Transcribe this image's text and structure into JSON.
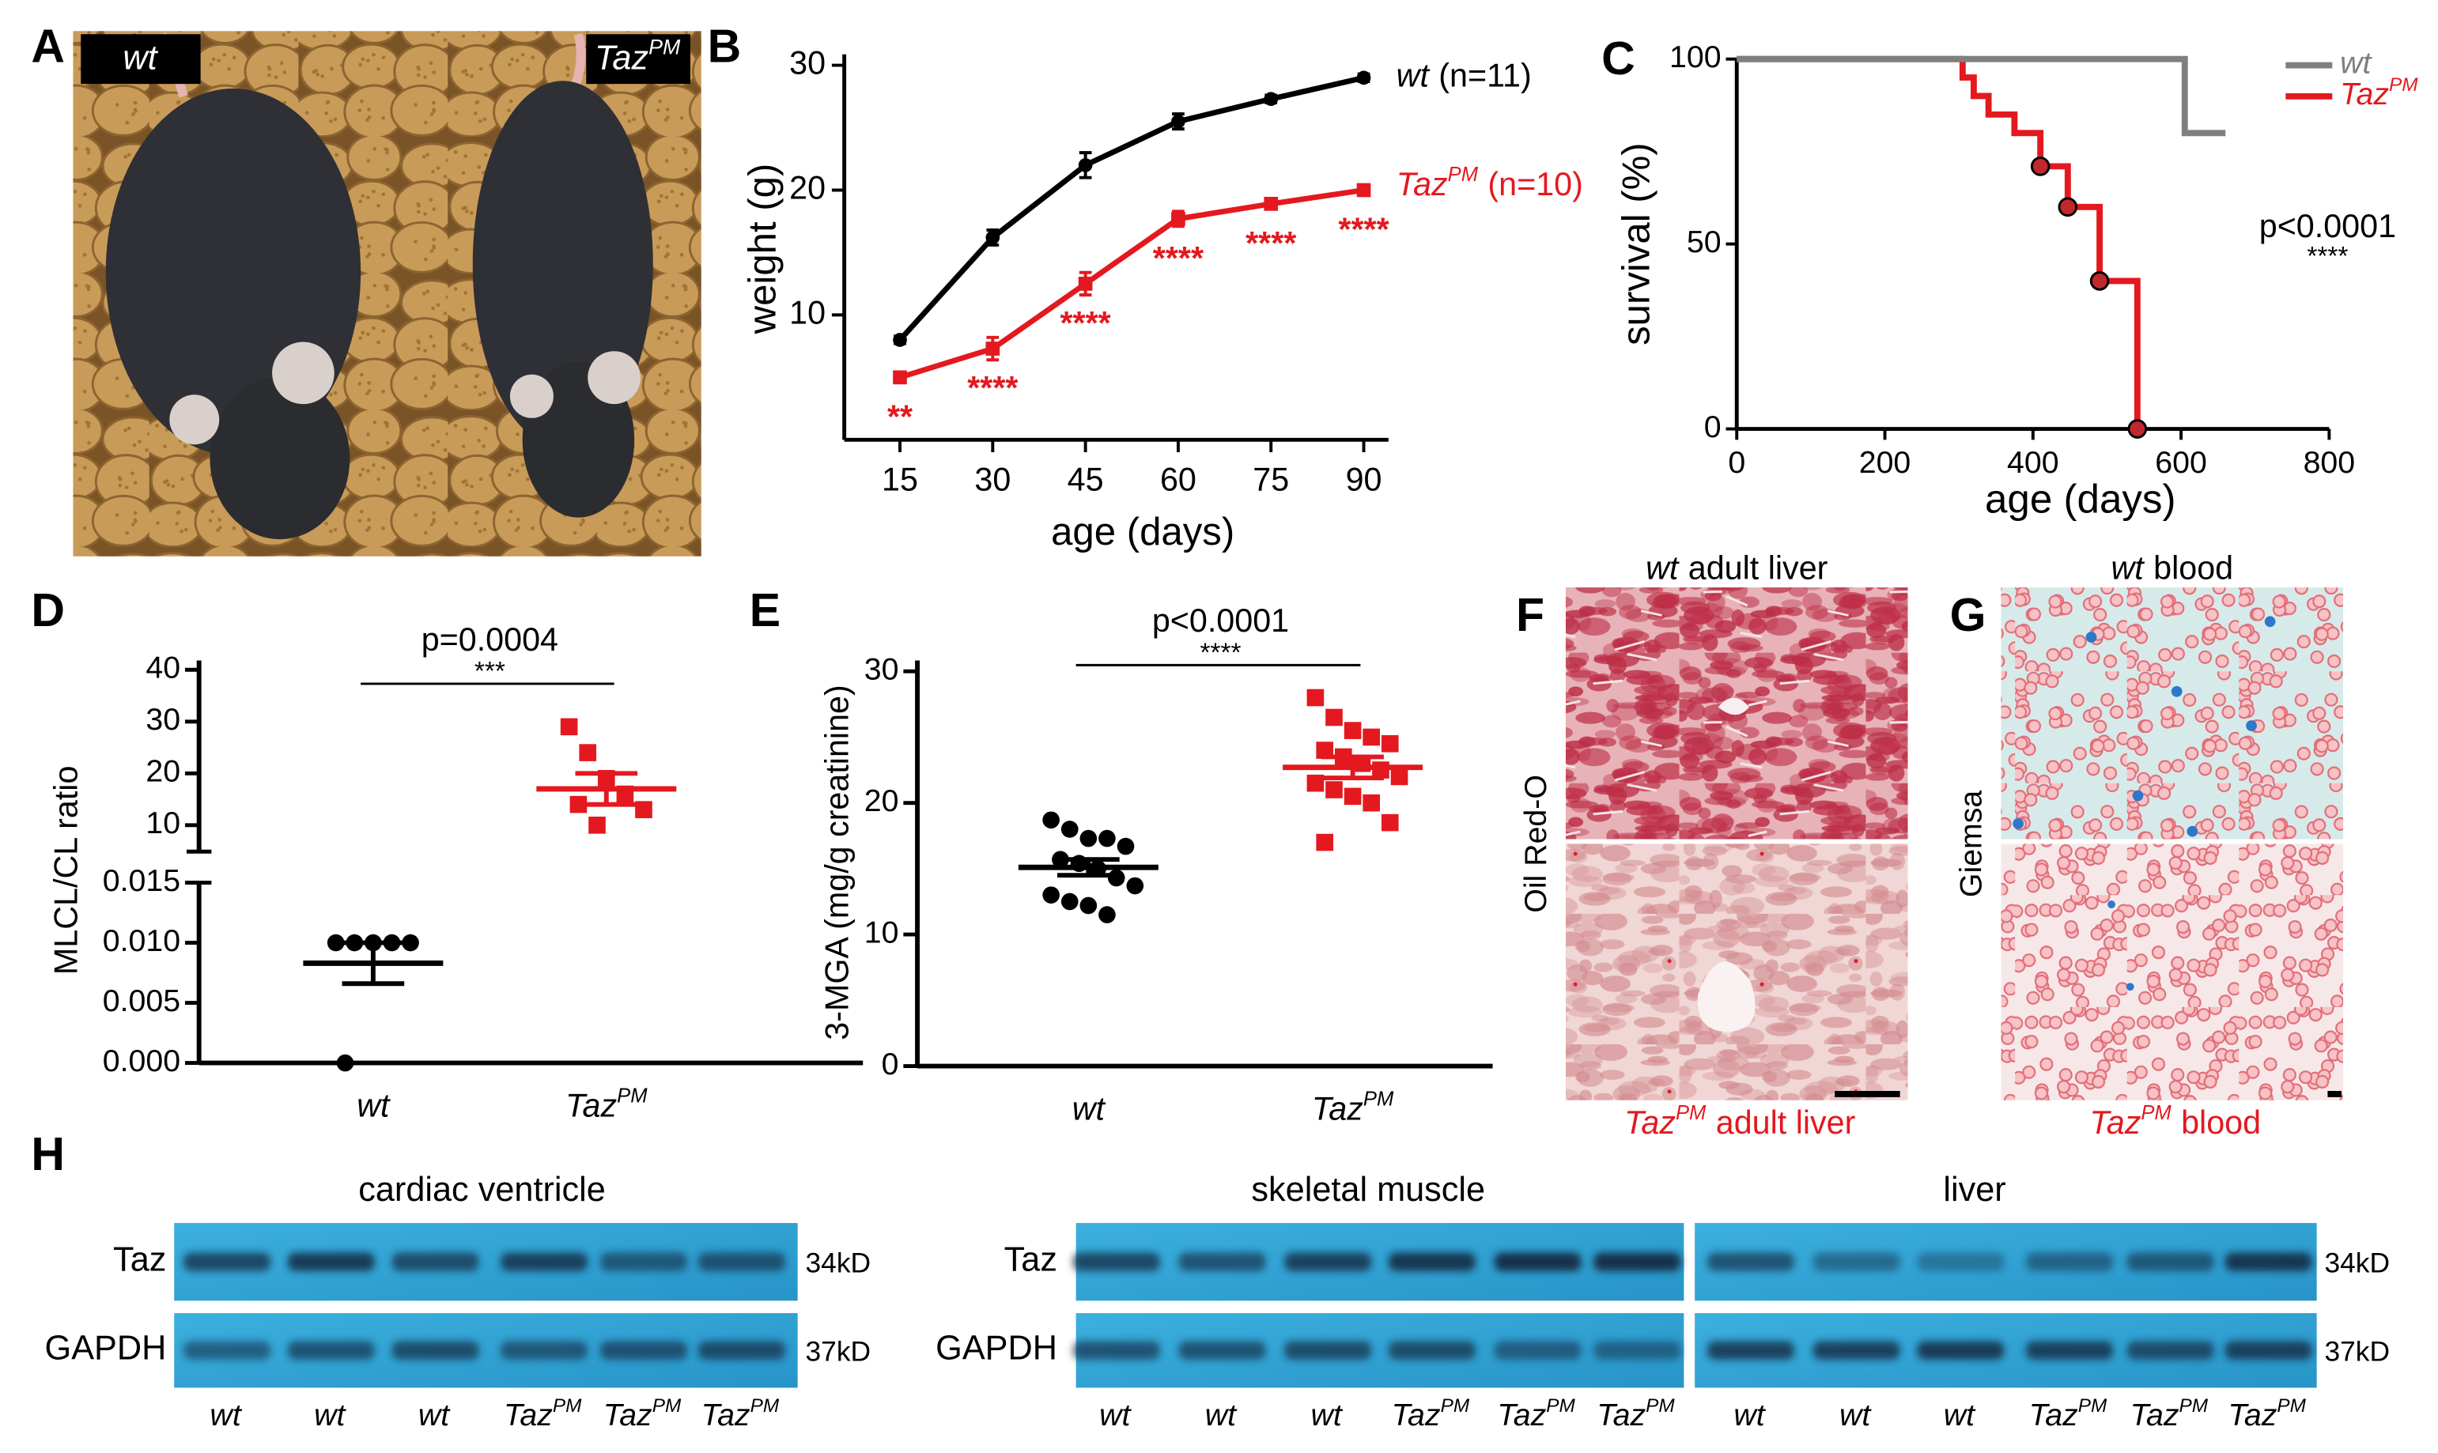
{
  "panel_labels": [
    "A",
    "B",
    "C",
    "D",
    "E",
    "F",
    "G",
    "H"
  ],
  "photo_labels": [
    {
      "name": "wt"
    },
    {
      "name": "Taz",
      "name_sup": "PM"
    }
  ],
  "chart_data": [
    {
      "type": "line",
      "xlabel": "age (days)",
      "ylabel": "weight (g)",
      "x": [
        15,
        30,
        45,
        60,
        75,
        90
      ],
      "xlim": [
        6,
        94
      ],
      "xticks": [
        15,
        30,
        45,
        60,
        75,
        90
      ],
      "ylim": [
        0,
        30
      ],
      "yticks": [
        10,
        20,
        30
      ],
      "series": [
        {
          "name": "wt",
          "n_label": "(n=11)",
          "color": "#000000",
          "marker": "circle",
          "values": [
            8,
            16.2,
            22,
            25.5,
            27.3,
            29
          ],
          "errors": [
            0.3,
            0.6,
            1,
            0.6,
            0.3,
            0.3
          ]
        },
        {
          "name": "Taz",
          "name_sup": "PM",
          "n_label": "(n=10)",
          "color": "#e3191f",
          "marker": "square",
          "values": [
            5,
            7.3,
            12.5,
            17.7,
            18.9,
            20
          ],
          "errors": [
            0.3,
            0.9,
            0.9,
            0.6,
            0.3,
            0.3
          ],
          "significance": [
            "**",
            "****",
            "****",
            "****",
            "****",
            "****"
          ]
        }
      ]
    },
    {
      "type": "step",
      "xlabel": "age (days)",
      "ylabel": "survival (%)",
      "xlim": [
        0,
        800
      ],
      "xticks": [
        0,
        200,
        400,
        600,
        800
      ],
      "ylim": [
        0,
        100
      ],
      "yticks": [
        0,
        50,
        100
      ],
      "series": [
        {
          "name": "wt",
          "color": "#7f7f7f",
          "x": [
            0,
            605,
            660
          ],
          "values": [
            100,
            80,
            80
          ]
        },
        {
          "name": "Taz",
          "name_sup": "PM",
          "color": "#e3191f",
          "x": [
            0,
            305,
            320,
            340,
            375,
            410,
            447,
            490,
            541
          ],
          "values": [
            100,
            95,
            90,
            85,
            80,
            71,
            60,
            40,
            0
          ],
          "censored_x": [
            410,
            447,
            490,
            541
          ],
          "censored_values": [
            71,
            60,
            40,
            0
          ]
        }
      ],
      "annotation": {
        "p": "p<0.0001",
        "stars": "****"
      }
    },
    {
      "type": "dot",
      "ylabel": "MLCL/CL ratio",
      "ylim": [
        0,
        0.015
      ],
      "yticks": [
        {
          "value": 0,
          "label": "0.000"
        },
        {
          "value": 0.005,
          "label": "0.005"
        },
        {
          "value": 0.01,
          "label": "0.010"
        },
        {
          "value": 0.015,
          "label": "0.015"
        }
      ],
      "ylim_upper": [
        10,
        40
      ],
      "yticks_upper": [
        10,
        20,
        30,
        40
      ],
      "series": [
        {
          "name": "wt",
          "color": "#000000",
          "marker": "circle",
          "values": [
            0.01,
            0.01,
            0.01,
            0.01,
            0.01,
            0
          ],
          "mean": 0.0083,
          "sem": 0.0017
        },
        {
          "name": "Taz",
          "name_sup": "PM",
          "color": "#e3191f",
          "marker": "square",
          "values": [
            29,
            24,
            19,
            16,
            13,
            14,
            10
          ],
          "mean": 17,
          "sem": 3
        }
      ],
      "annotation": {
        "p": "p=0.0004",
        "stars": "***"
      }
    },
    {
      "type": "dot",
      "ylabel": "3-MGA (mg/g creatinine)",
      "ylim": [
        0,
        30
      ],
      "yticks": [
        0,
        10,
        20,
        30
      ],
      "series": [
        {
          "name": "wt",
          "color": "#000000",
          "marker": "circle",
          "values": [
            18.7,
            18,
            17.3,
            17.3,
            16.7,
            15.7,
            15.4,
            15,
            14.3,
            13.7,
            13,
            12.5,
            12.2,
            11.5
          ],
          "mean": 15.1,
          "sem": 0.6
        },
        {
          "name": "Taz",
          "name_sup": "PM",
          "color": "#e3191f",
          "marker": "square",
          "values": [
            28,
            26.5,
            25.5,
            25,
            24.5,
            24,
            23.5,
            23,
            22.5,
            22,
            21.5,
            21,
            20.5,
            20,
            18.5,
            17
          ],
          "mean": 22.7,
          "sem": 0.8
        }
      ],
      "annotation": {
        "p": "p<0.0001",
        "stars": "****"
      }
    }
  ],
  "histology": [
    {
      "title": {
        "name": "wt"
      },
      "title_text": "adult liver",
      "stain": "Oil Red-O",
      "bottom": {
        "name": "Taz",
        "name_sup": "PM"
      },
      "bottom_text": "adult liver"
    },
    {
      "title": {
        "name": "wt"
      },
      "title_text": "blood",
      "stain": "Giemsa",
      "bottom": {
        "name": "Taz",
        "name_sup": "PM"
      },
      "bottom_text": "blood"
    }
  ],
  "western": {
    "tissues": [
      "cardiac ventricle",
      "skeletal muscle",
      "liver"
    ],
    "rows": [
      "Taz",
      "GAPDH"
    ],
    "sizes": [
      "34kD",
      "37kD"
    ],
    "lanes": [
      {
        "name": "wt"
      },
      {
        "name": "wt"
      },
      {
        "name": "wt"
      },
      {
        "name": "Taz",
        "name_sup": "PM"
      },
      {
        "name": "Taz",
        "name_sup": "PM"
      },
      {
        "name": "Taz",
        "name_sup": "PM"
      }
    ]
  }
}
